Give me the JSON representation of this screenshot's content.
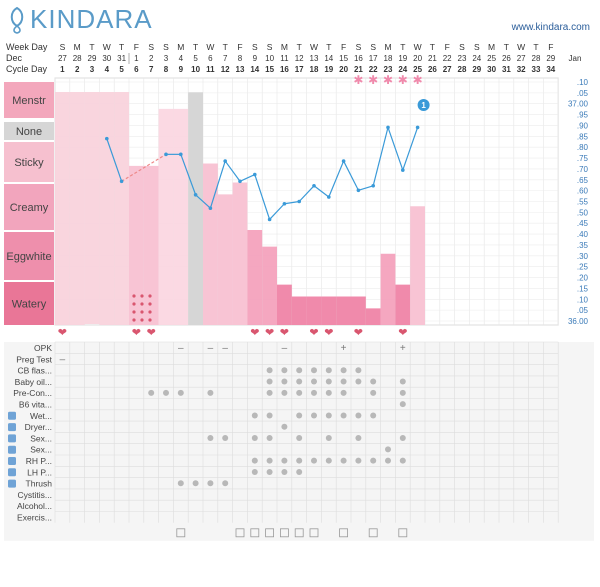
{
  "brand": {
    "name": "KINDARA",
    "site": "www.kindara.com"
  },
  "colors": {
    "accent": "#3a9ad8",
    "pink": "#f7b6c8",
    "gray": "#cfcfcf",
    "heart": "#d9566f",
    "star": "#f08aac"
  },
  "row_labels": {
    "week_day": "Week Day",
    "month": "Dec",
    "cycle_day": "Cycle Day"
  },
  "week_days": [
    "S",
    "M",
    "T",
    "W",
    "T",
    "F",
    "S",
    "S",
    "M",
    "T",
    "W",
    "T",
    "F",
    "S",
    "S",
    "M",
    "T",
    "W",
    "T",
    "F",
    "S",
    "S",
    "M",
    "T",
    "W",
    "T",
    "F",
    "S",
    "S",
    "M",
    "T",
    "W",
    "T",
    "F"
  ],
  "dates": [
    "27",
    "28",
    "29",
    "30",
    "31",
    "1",
    "2",
    "3",
    "4",
    "5",
    "6",
    "7",
    "8",
    "9",
    "10",
    "11",
    "12",
    "13",
    "14",
    "15",
    "16",
    "17",
    "18",
    "19",
    "20",
    "21",
    "22",
    "23",
    "24",
    "25",
    "26",
    "27",
    "28",
    "29"
  ],
  "month_change": {
    "index": 5,
    "label": "Jan"
  },
  "cycle_days": [
    "1",
    "2",
    "3",
    "4",
    "5",
    "6",
    "7",
    "8",
    "9",
    "10",
    "11",
    "12",
    "13",
    "14",
    "15",
    "16",
    "17",
    "18",
    "19",
    "20",
    "21",
    "22",
    "23",
    "24",
    "25",
    "26",
    "27",
    "28",
    "29",
    "30",
    "31",
    "32",
    "33",
    "34"
  ],
  "chart_data": {
    "type": "line",
    "x": [
      1,
      2,
      3,
      4,
      5,
      6,
      7,
      8,
      9,
      10,
      11,
      12,
      13,
      14,
      15,
      16,
      17,
      18,
      19,
      20,
      21,
      22,
      23,
      24,
      25,
      26,
      27,
      28,
      29,
      30,
      31,
      32,
      33,
      34
    ],
    "series": [
      {
        "values": [
          null,
          null,
          null,
          97.83,
          97.64,
          null,
          null,
          97.76,
          97.76,
          97.58,
          97.52,
          97.73,
          97.64,
          97.67,
          97.47,
          97.54,
          97.55,
          97.62,
          97.57,
          97.73,
          97.6,
          97.62,
          97.88,
          97.69,
          97.88,
          null,
          null,
          null,
          null,
          null,
          null,
          null,
          null,
          null
        ]
      }
    ],
    "ylim": [
      97.0,
      98.1
    ],
    "ylabels": [
      ".10",
      ".05",
      "37.00",
      ".95",
      ".90",
      ".85",
      ".80",
      ".75",
      ".70",
      ".65",
      ".60",
      ".55",
      ".50",
      ".45",
      ".40",
      ".35",
      ".30",
      ".25",
      ".20",
      ".15",
      ".10",
      ".05",
      "36.00"
    ],
    "marker_badge": "1",
    "fluid_levels": [
      "Menstr",
      "None",
      "Sticky",
      "Creamy",
      "Eggwhite",
      "Watery"
    ],
    "fluid_bars": [
      {
        "day": 1,
        "level": "menstr",
        "value": 1.0
      },
      {
        "day": 2,
        "level": "menstr",
        "value": 1.0
      },
      {
        "day": 3,
        "level": "menstr",
        "value": 0.75
      },
      {
        "day": 4,
        "level": "menstr",
        "value": 1.0
      },
      {
        "day": 5,
        "level": "menstr",
        "value": 1.25
      },
      {
        "day": 6,
        "level": "creamy",
        "value": 3.35
      },
      {
        "day": 7,
        "level": "creamy",
        "value": 3.35
      },
      {
        "day": 8,
        "level": "sticky",
        "value": 4.55
      },
      {
        "day": 9,
        "level": "sticky",
        "value": 4.55
      },
      {
        "day": 10,
        "level": "none",
        "value": 4.9
      },
      {
        "day": 11,
        "level": "creamy",
        "value": 3.4
      },
      {
        "day": 12,
        "level": "creamy",
        "value": 2.75
      },
      {
        "day": 13,
        "level": "creamy",
        "value": 3.0
      },
      {
        "day": 14,
        "level": "eggwhite",
        "value": 2.0
      },
      {
        "day": 15,
        "level": "eggwhite",
        "value": 1.65
      },
      {
        "day": 16,
        "level": "watery",
        "value": 0.85
      },
      {
        "day": 17,
        "level": "watery",
        "value": 0.6
      },
      {
        "day": 18,
        "level": "watery",
        "value": 0.6
      },
      {
        "day": 19,
        "level": "watery",
        "value": 0.6
      },
      {
        "day": 20,
        "level": "watery",
        "value": 0.6
      },
      {
        "day": 21,
        "level": "watery",
        "value": 0.6
      },
      {
        "day": 22,
        "level": "watery",
        "value": 0.35
      },
      {
        "day": 23,
        "level": "eggwhite",
        "value": 1.5
      },
      {
        "day": 24,
        "level": "watery",
        "value": 0.85
      },
      {
        "day": 25,
        "level": "creamy",
        "value": 2.5
      }
    ],
    "stars": [
      21,
      22,
      23,
      24,
      25
    ],
    "hearts": [
      1,
      6,
      7,
      14,
      15,
      16,
      18,
      19,
      21,
      24
    ],
    "spotting_day": 6
  },
  "log_rows": [
    {
      "label": "OPK",
      "marks": [
        {
          "day": 9,
          "sym": "–"
        },
        {
          "day": 11,
          "sym": "–"
        },
        {
          "day": 12,
          "sym": "–"
        },
        {
          "day": 16,
          "sym": "–"
        },
        {
          "day": 20,
          "sym": "+"
        },
        {
          "day": 24,
          "sym": "+"
        }
      ]
    },
    {
      "label": "Preg Test",
      "marks": [
        {
          "day": 1,
          "sym": "–"
        }
      ]
    },
    {
      "label": "CB flas...",
      "dots": [
        15,
        16,
        17,
        18,
        19,
        20,
        21
      ]
    },
    {
      "label": "Baby oil...",
      "dots": [
        15,
        16,
        17,
        18,
        19,
        20,
        21,
        22,
        24
      ]
    },
    {
      "label": "Pre-Con...",
      "dots": [
        7,
        8,
        9,
        11,
        15,
        16,
        17,
        18,
        19,
        20,
        22,
        24
      ]
    },
    {
      "label": "B6 vita...",
      "dots": [
        24
      ]
    },
    {
      "label": "Wet...",
      "icon": "droplets-icon",
      "dots": [
        14,
        15,
        17,
        18,
        19,
        20,
        21,
        22
      ]
    },
    {
      "label": "Dryer...",
      "icon": "dryer-icon",
      "dots": [
        16
      ]
    },
    {
      "label": "Sex...",
      "icon": "down-arrow-icon",
      "dots": [
        11,
        12,
        14,
        15,
        17,
        19,
        21,
        24
      ]
    },
    {
      "label": "Sex...",
      "icon": "up-arrow-icon",
      "dots": [
        23
      ]
    },
    {
      "label": "RH P...",
      "icon": "right-arrow-icon",
      "dots": [
        14,
        15,
        16,
        17,
        18,
        19,
        20,
        21,
        22,
        23,
        24
      ]
    },
    {
      "label": "LH P...",
      "icon": "left-arrow-icon",
      "dots": [
        14,
        15,
        16,
        17
      ]
    },
    {
      "label": "Thrush",
      "icon": "sad-face-icon",
      "dots": [
        9,
        10,
        11,
        12
      ]
    },
    {
      "label": "Cystitis...",
      "dots": []
    },
    {
      "label": "Alcohol...",
      "dots": []
    },
    {
      "label": "Exercis...",
      "dots": []
    }
  ],
  "note_days": [
    9,
    13,
    14,
    15,
    16,
    17,
    18,
    20,
    22,
    24
  ]
}
